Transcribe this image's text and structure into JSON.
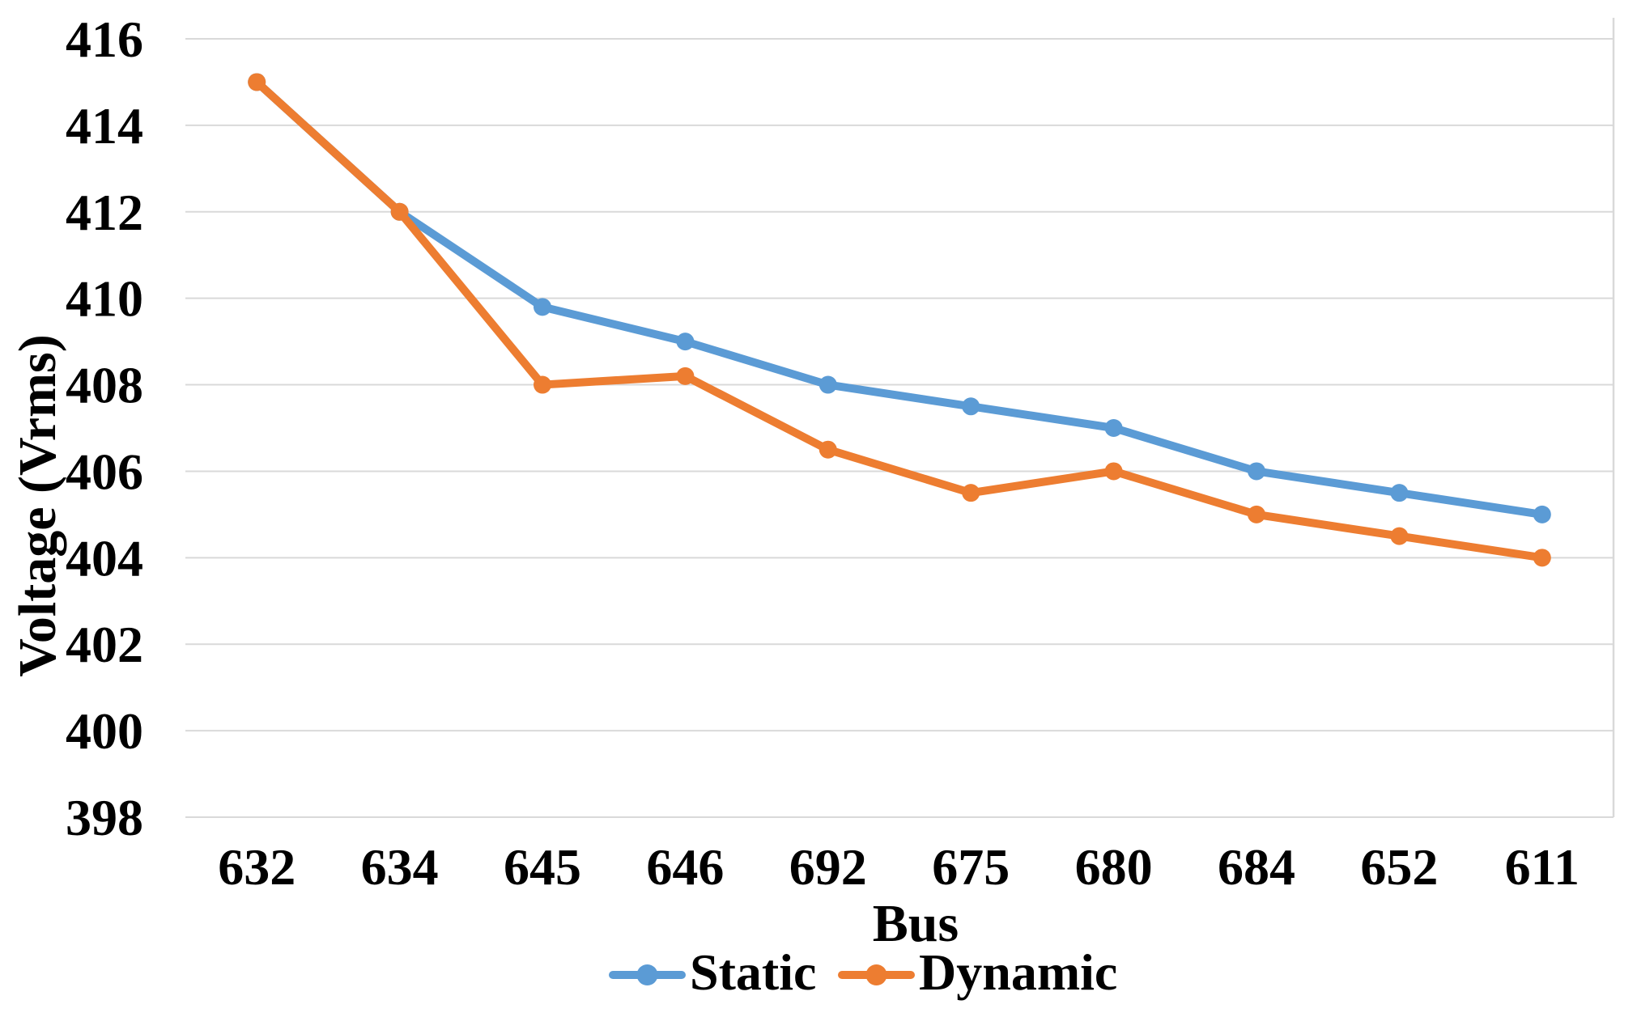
{
  "chart_data": {
    "type": "line",
    "title": "",
    "xlabel": "Bus",
    "ylabel": "Voltage (Vrms)",
    "categories": [
      "632",
      "634",
      "645",
      "646",
      "692",
      "675",
      "680",
      "684",
      "652",
      "611"
    ],
    "series": [
      {
        "name": "Static",
        "color": "#5B9BD5",
        "values": [
          415,
          412,
          409.8,
          409,
          408,
          407.5,
          407,
          406,
          405.5,
          405
        ]
      },
      {
        "name": "Dynamic",
        "color": "#ED7D31",
        "values": [
          415,
          412,
          408,
          408.2,
          406.5,
          405.5,
          406,
          405,
          404.5,
          404
        ]
      }
    ],
    "ylim": [
      398,
      416
    ],
    "yticks": [
      416,
      414,
      412,
      410,
      408,
      406,
      404,
      402,
      400,
      398
    ],
    "grid": true,
    "grid_color": "#D9D9D9",
    "text_color": "#000000",
    "legend_position": "bottom",
    "marker": "circle"
  }
}
